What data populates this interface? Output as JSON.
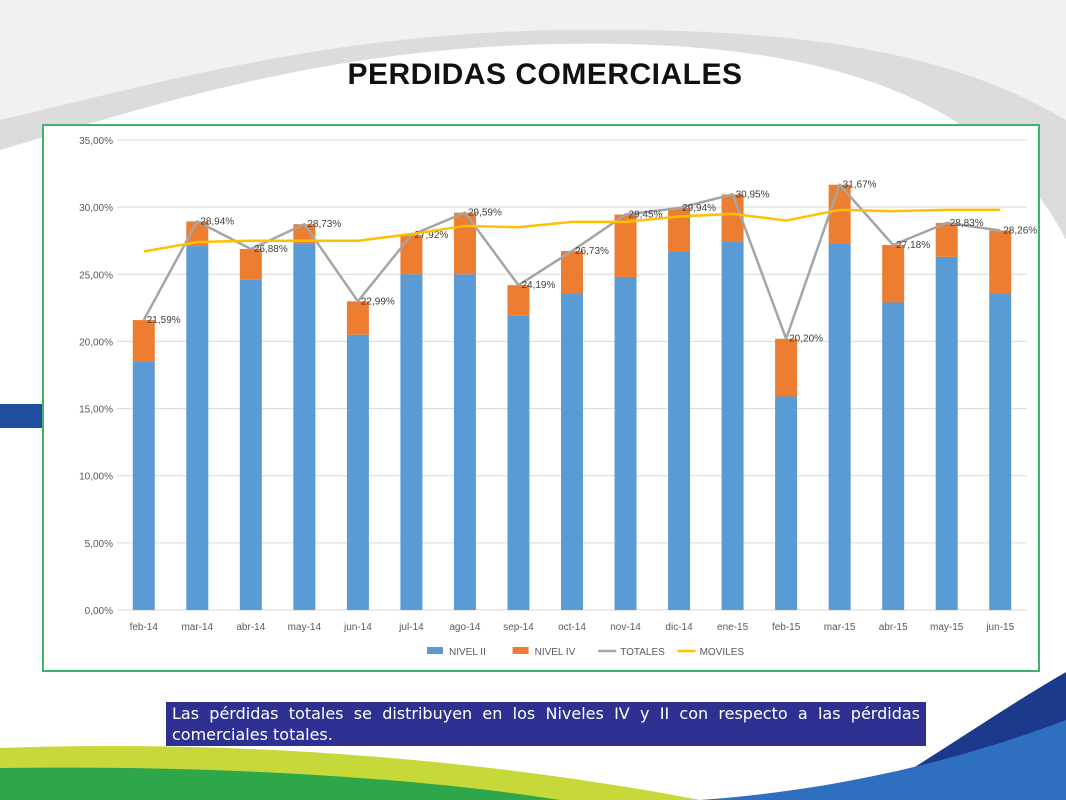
{
  "slide": {
    "title": "PERDIDAS COMERCIALES",
    "note": "Las pérdidas totales se distribuyen en los Niveles IV y II con respecto a las pérdidas comerciales totales."
  },
  "chart_data": {
    "type": "bar",
    "stacked": true,
    "categories": [
      "feb-14",
      "mar-14",
      "abr-14",
      "may-14",
      "jun-14",
      "jul-14",
      "ago-14",
      "sep-14",
      "oct-14",
      "nov-14",
      "dic-14",
      "ene-15",
      "feb-15",
      "mar-15",
      "abr-15",
      "may-15",
      "jun-15"
    ],
    "yticks": [
      "0,00%",
      "5,00%",
      "10,00%",
      "15,00%",
      "20,00%",
      "25,00%",
      "30,00%",
      "35,00%"
    ],
    "ylim": [
      0,
      35
    ],
    "grid": true,
    "legend_position": "bottom",
    "series": [
      {
        "name": "NIVEL II",
        "kind": "bar",
        "color": "#5b9bd5",
        "values": [
          18.5,
          27.1,
          24.6,
          27.3,
          20.5,
          25.0,
          25.0,
          21.9,
          23.6,
          24.8,
          26.7,
          27.4,
          15.9,
          27.3,
          22.9,
          26.3,
          23.6
        ]
      },
      {
        "name": "NIVEL IV",
        "kind": "bar",
        "color": "#ed7d31",
        "values": [
          3.09,
          1.84,
          2.28,
          1.43,
          2.49,
          2.92,
          4.59,
          2.29,
          3.13,
          4.65,
          3.24,
          3.55,
          4.3,
          4.37,
          4.28,
          2.53,
          4.66
        ]
      },
      {
        "name": "TOTALES",
        "kind": "line",
        "color": "#a5a5a5",
        "values": [
          21.59,
          28.94,
          26.88,
          28.73,
          22.99,
          27.92,
          29.59,
          24.19,
          26.73,
          29.45,
          29.94,
          30.95,
          20.2,
          31.67,
          27.18,
          28.83,
          28.26
        ],
        "labels": [
          "21,59%",
          "28,94%",
          "26,88%",
          "28,73%",
          "22,99%",
          "27,92%",
          "29,59%",
          "24,19%",
          "26,73%",
          "29,45%",
          "29,94%",
          "30,95%",
          "20,20%",
          "31,67%",
          "27,18%",
          "28,83%",
          "28,26%"
        ]
      },
      {
        "name": "MOVILES",
        "kind": "line",
        "color": "#ffc000",
        "values": [
          26.7,
          27.4,
          27.5,
          27.5,
          27.5,
          28.0,
          28.6,
          28.5,
          28.9,
          28.9,
          29.3,
          29.5,
          29.0,
          29.8,
          29.7,
          29.8,
          29.8
        ]
      }
    ]
  }
}
